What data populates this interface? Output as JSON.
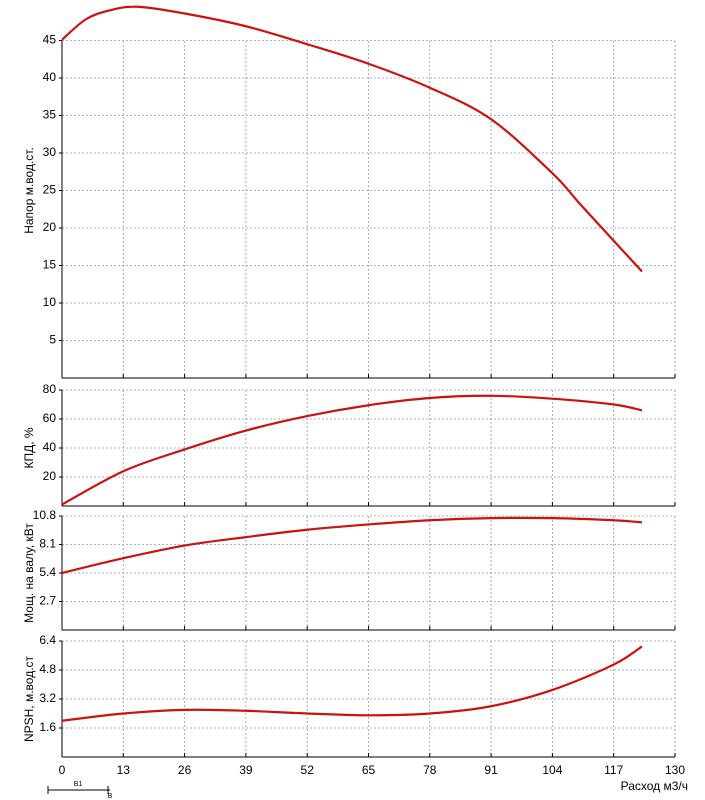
{
  "chart_data": [
    {
      "type": "line",
      "y_label": "Напор м.вод.ст.",
      "color": "#cc1111",
      "x": [
        0,
        5,
        10,
        16,
        26,
        39,
        52,
        65,
        78,
        91,
        104,
        110,
        117,
        123
      ],
      "values": [
        45.1,
        47.8,
        49,
        49.5,
        48.6,
        46.9,
        44.5,
        41.9,
        38.7,
        34.5,
        27.3,
        23.1,
        18.3,
        14.2
      ],
      "ylim": [
        0,
        50
      ],
      "yticks": [
        5,
        10,
        15,
        20,
        25,
        30,
        35,
        40,
        45
      ],
      "grid": true
    },
    {
      "type": "line",
      "y_label": "КПД, %",
      "color": "#cc1111",
      "x": [
        0,
        13,
        26,
        39,
        52,
        65,
        78,
        91,
        104,
        117,
        123
      ],
      "values": [
        1,
        24,
        39,
        52,
        62,
        69.5,
        74.5,
        76,
        74,
        70,
        66
      ],
      "ylim": [
        0,
        80
      ],
      "yticks": [
        20,
        40,
        60,
        80
      ],
      "grid": true
    },
    {
      "type": "line",
      "y_label": "Мощ. на валу, кВт",
      "color": "#cc1111",
      "x": [
        0,
        13,
        26,
        39,
        52,
        65,
        78,
        91,
        104,
        117,
        123
      ],
      "values": [
        5.4,
        6.8,
        8.0,
        8.8,
        9.5,
        10.0,
        10.4,
        10.6,
        10.6,
        10.4,
        10.2
      ],
      "ylim": [
        0,
        10.8
      ],
      "yticks": [
        2.7,
        5.4,
        8.1,
        10.8
      ],
      "grid": true
    },
    {
      "type": "line",
      "y_label": "NPSH, м.вод.ст",
      "color": "#cc1111",
      "x": [
        0,
        13,
        26,
        39,
        52,
        65,
        78,
        91,
        104,
        117,
        123
      ],
      "values": [
        2.0,
        2.4,
        2.6,
        2.55,
        2.4,
        2.3,
        2.4,
        2.8,
        3.7,
        5.1,
        6.1
      ],
      "ylim": [
        0,
        6.4
      ],
      "yticks": [
        1.6,
        3.2,
        4.8,
        6.4
      ],
      "grid": true,
      "x_label": "Расход м3/ч",
      "xlim": [
        0,
        130
      ],
      "xticks": [
        0,
        13,
        26,
        39,
        52,
        65,
        78,
        91,
        104,
        117,
        130
      ],
      "annotations": [
        "B1",
        "B"
      ]
    }
  ]
}
